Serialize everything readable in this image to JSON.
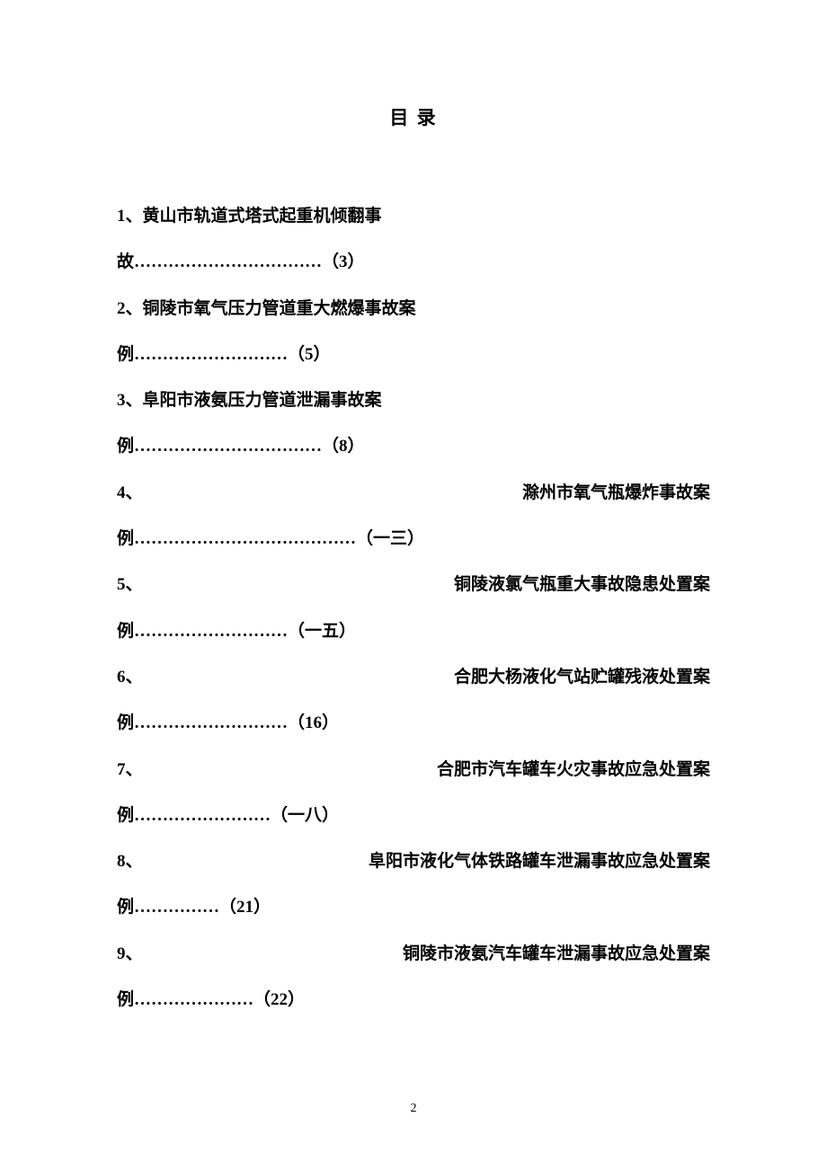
{
  "title": "目 录",
  "entries": [
    {
      "line1": "1、黄山市轨道式塔式起重机倾翻事",
      "line2": "故……………………………（3）"
    },
    {
      "line1": "2、铜陵市氧气压力管道重大燃爆事故案",
      "line2": "例………………………（5）"
    },
    {
      "line1": "3、阜阳市液氨压力管道泄漏事故案",
      "line2": "例……………………………（8）"
    },
    {
      "num": "4、",
      "titleRight": "滁州市氧气瓶爆炸事故案",
      "line2": "例…………………………………（一三）"
    },
    {
      "num": "5、",
      "titleRight": "铜陵液氯气瓶重大事故隐患处置案",
      "line2": "例………………………（一五）"
    },
    {
      "num": "6、",
      "titleRight": "合肥大杨液化气站贮罐残液处置案",
      "line2": "例………………………（16）"
    },
    {
      "num": "7、",
      "titleRight": "合肥市汽车罐车火灾事故应急处置案",
      "line2": "例……………………（一八）"
    },
    {
      "num": "8、",
      "titleRight": "阜阳市液化气体铁路罐车泄漏事故应急处置案",
      "line2": "例……………（21）"
    },
    {
      "num": "9、",
      "titleRight": "铜陵市液氨汽车罐车泄漏事故应急处置案",
      "line2": "例…………………（22）"
    }
  ],
  "pageNumber": "2"
}
